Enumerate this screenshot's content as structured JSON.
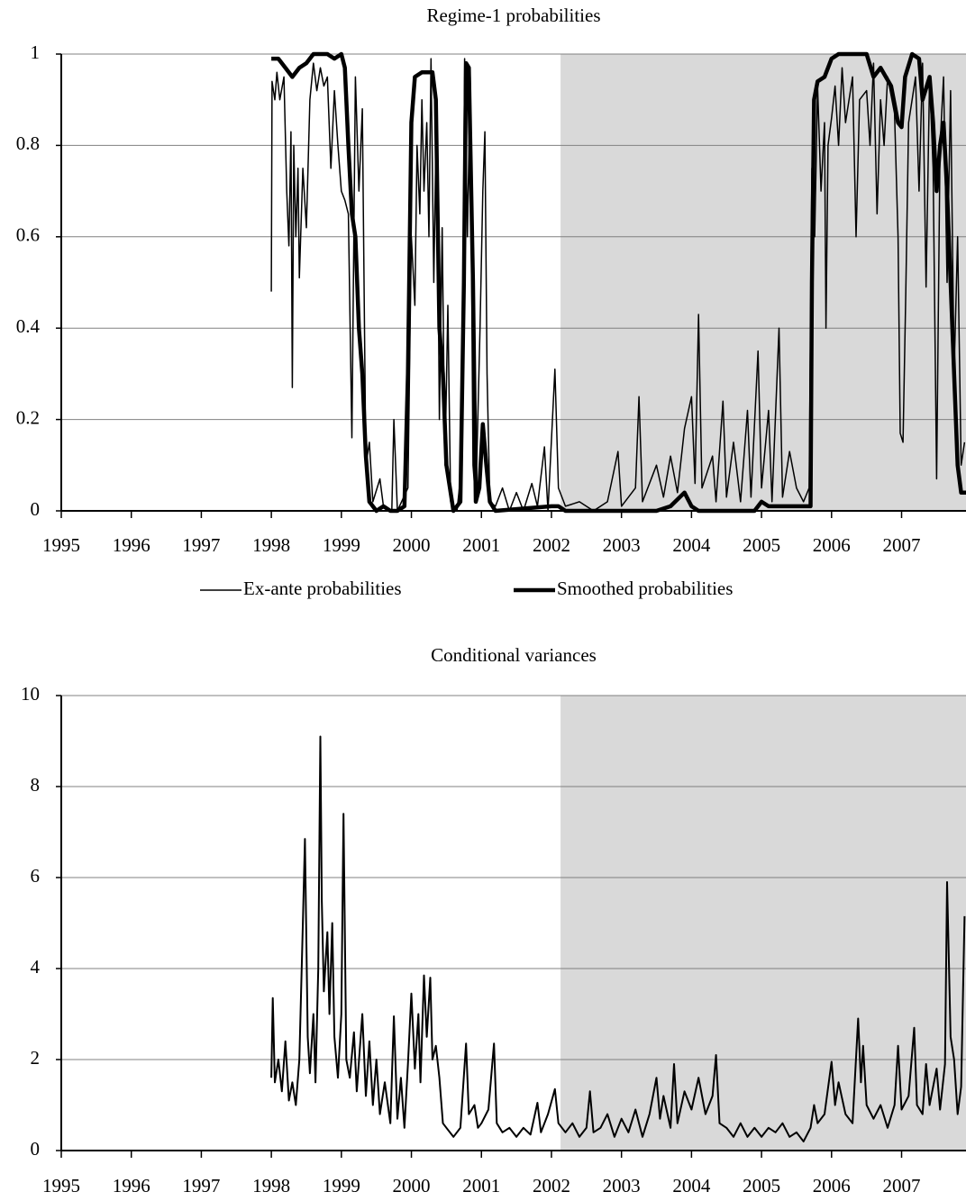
{
  "chart_data": [
    {
      "type": "line",
      "title": "Regime-1 probabilities",
      "xlim": [
        1995,
        2007.92
      ],
      "xticks": [
        1995,
        1996,
        1997,
        1998,
        1999,
        2000,
        2001,
        2002,
        2003,
        2004,
        2005,
        2006,
        2007
      ],
      "ylim": [
        0,
        1
      ],
      "yticks": [
        0,
        0.2,
        0.4,
        0.6,
        0.8,
        1
      ],
      "grid": true,
      "legend": "bottom",
      "shaded_region": [
        2002.13,
        2007.92
      ],
      "shade_color": "#d9d9d9",
      "series": [
        {
          "name": "Ex-ante probabilities",
          "color": "#000000",
          "width": 1.5,
          "x": [
            1998.0,
            1998.01,
            1998.05,
            1998.08,
            1998.12,
            1998.18,
            1998.22,
            1998.25,
            1998.28,
            1998.3,
            1998.32,
            1998.35,
            1998.38,
            1998.4,
            1998.45,
            1998.5,
            1998.55,
            1998.6,
            1998.65,
            1998.7,
            1998.75,
            1998.8,
            1998.85,
            1998.9,
            1998.95,
            1999.0,
            1999.05,
            1999.1,
            1999.15,
            1999.2,
            1999.25,
            1999.3,
            1999.35,
            1999.4,
            1999.45,
            1999.55,
            1999.6,
            1999.72,
            1999.75,
            1999.8,
            1999.95,
            2000.0,
            2000.05,
            2000.08,
            2000.12,
            2000.15,
            2000.18,
            2000.22,
            2000.25,
            2000.28,
            2000.32,
            2000.36,
            2000.4,
            2000.44,
            2000.48,
            2000.52,
            2000.56,
            2000.65,
            2000.72,
            2000.76,
            2000.8,
            2000.84,
            2000.88,
            2000.92,
            2000.98,
            2001.02,
            2001.05,
            2001.08,
            2001.12,
            2001.2,
            2001.3,
            2001.4,
            2001.5,
            2001.6,
            2001.72,
            2001.8,
            2001.9,
            2001.95,
            2002.05,
            2002.1,
            2002.2,
            2002.4,
            2002.6,
            2002.8,
            2002.95,
            2003.0,
            2003.2,
            2003.25,
            2003.3,
            2003.5,
            2003.6,
            2003.7,
            2003.8,
            2003.9,
            2004.0,
            2004.05,
            2004.1,
            2004.15,
            2004.3,
            2004.35,
            2004.45,
            2004.5,
            2004.6,
            2004.7,
            2004.8,
            2004.85,
            2004.95,
            2005.0,
            2005.1,
            2005.15,
            2005.25,
            2005.3,
            2005.4,
            2005.5,
            2005.6,
            2005.68,
            2005.72,
            2005.76,
            2005.8,
            2005.85,
            2005.9,
            2005.92,
            2005.95,
            2006.0,
            2006.05,
            2006.1,
            2006.15,
            2006.2,
            2006.3,
            2006.35,
            2006.4,
            2006.5,
            2006.55,
            2006.6,
            2006.65,
            2006.7,
            2006.75,
            2006.8,
            2006.9,
            2006.95,
            2006.98,
            2007.02,
            2007.06,
            2007.1,
            2007.15,
            2007.2,
            2007.25,
            2007.3,
            2007.35,
            2007.4,
            2007.45,
            2007.5,
            2007.55,
            2007.6,
            2007.65,
            2007.7,
            2007.75,
            2007.8,
            2007.85,
            2007.9
          ],
          "values": [
            0.48,
            0.94,
            0.9,
            0.96,
            0.9,
            0.95,
            0.7,
            0.58,
            0.83,
            0.27,
            0.8,
            0.6,
            0.75,
            0.51,
            0.75,
            0.62,
            0.9,
            0.98,
            0.92,
            0.97,
            0.93,
            0.95,
            0.75,
            0.92,
            0.8,
            0.7,
            0.68,
            0.65,
            0.16,
            0.95,
            0.7,
            0.88,
            0.1,
            0.15,
            0.02,
            0.07,
            0.01,
            0.0,
            0.2,
            0.0,
            0.05,
            0.6,
            0.45,
            0.8,
            0.65,
            0.9,
            0.7,
            0.85,
            0.6,
            0.99,
            0.5,
            0.9,
            0.2,
            0.62,
            0.1,
            0.45,
            0.02,
            0.0,
            0.1,
            0.99,
            0.6,
            0.95,
            0.1,
            0.02,
            0.4,
            0.7,
            0.83,
            0.3,
            0.02,
            0.01,
            0.05,
            0.0,
            0.04,
            0.0,
            0.06,
            0.01,
            0.14,
            0.0,
            0.31,
            0.05,
            0.01,
            0.02,
            0.0,
            0.02,
            0.13,
            0.01,
            0.05,
            0.25,
            0.02,
            0.1,
            0.03,
            0.12,
            0.04,
            0.18,
            0.25,
            0.06,
            0.43,
            0.05,
            0.12,
            0.02,
            0.24,
            0.03,
            0.15,
            0.02,
            0.22,
            0.03,
            0.35,
            0.05,
            0.22,
            0.02,
            0.4,
            0.03,
            0.13,
            0.05,
            0.02,
            0.05,
            0.75,
            0.6,
            0.93,
            0.7,
            0.85,
            0.4,
            0.8,
            0.86,
            0.93,
            0.8,
            0.97,
            0.85,
            0.95,
            0.6,
            0.9,
            0.92,
            0.8,
            0.98,
            0.65,
            0.9,
            0.8,
            0.95,
            0.87,
            0.6,
            0.17,
            0.15,
            0.48,
            0.85,
            0.9,
            0.95,
            0.7,
            0.98,
            0.49,
            0.95,
            0.75,
            0.07,
            0.8,
            0.95,
            0.5,
            0.92,
            0.3,
            0.6,
            0.1,
            0.15
          ]
        },
        {
          "name": "Smoothed probabilities",
          "color": "#000000",
          "width": 4.5,
          "x": [
            1998.0,
            1998.1,
            1998.2,
            1998.3,
            1998.4,
            1998.5,
            1998.6,
            1998.8,
            1998.9,
            1999.0,
            1999.05,
            1999.1,
            1999.15,
            1999.2,
            1999.25,
            1999.3,
            1999.35,
            1999.4,
            1999.5,
            1999.6,
            1999.7,
            1999.8,
            1999.9,
            1999.95,
            2000.0,
            2000.05,
            2000.15,
            2000.3,
            2000.35,
            2000.4,
            2000.45,
            2000.5,
            2000.55,
            2000.6,
            2000.7,
            2000.75,
            2000.78,
            2000.82,
            2000.88,
            2000.92,
            2000.97,
            2001.02,
            2001.07,
            2001.12,
            2001.2,
            2002.0,
            2002.1,
            2002.2,
            2003.5,
            2003.7,
            2003.9,
            2004.0,
            2004.1,
            2004.9,
            2005.0,
            2005.1,
            2005.7,
            2005.72,
            2005.75,
            2005.8,
            2005.9,
            2006.0,
            2006.1,
            2006.5,
            2006.6,
            2006.7,
            2006.85,
            2006.95,
            2007.0,
            2007.05,
            2007.15,
            2007.25,
            2007.3,
            2007.4,
            2007.45,
            2007.5,
            2007.55,
            2007.6,
            2007.65,
            2007.7,
            2007.75,
            2007.8,
            2007.85,
            2007.92
          ],
          "values": [
            0.99,
            0.99,
            0.97,
            0.95,
            0.97,
            0.98,
            1.0,
            1.0,
            0.99,
            1.0,
            0.97,
            0.8,
            0.65,
            0.6,
            0.4,
            0.3,
            0.12,
            0.02,
            0.0,
            0.01,
            0.0,
            0.0,
            0.01,
            0.3,
            0.85,
            0.95,
            0.96,
            0.96,
            0.9,
            0.4,
            0.3,
            0.1,
            0.05,
            0.0,
            0.02,
            0.5,
            0.98,
            0.97,
            0.5,
            0.02,
            0.05,
            0.19,
            0.1,
            0.02,
            0.0,
            0.01,
            0.01,
            0.0,
            0.0,
            0.01,
            0.04,
            0.01,
            0.0,
            0.0,
            0.02,
            0.01,
            0.01,
            0.5,
            0.9,
            0.94,
            0.95,
            0.99,
            1.0,
            1.0,
            0.95,
            0.97,
            0.93,
            0.85,
            0.84,
            0.95,
            1.0,
            0.99,
            0.9,
            0.95,
            0.85,
            0.7,
            0.8,
            0.85,
            0.7,
            0.5,
            0.3,
            0.1,
            0.04,
            0.04
          ]
        }
      ]
    },
    {
      "type": "line",
      "title": "Conditional variances",
      "xlim": [
        1995,
        2007.92
      ],
      "xticks": [
        1995,
        1996,
        1997,
        1998,
        1999,
        2000,
        2001,
        2002,
        2003,
        2004,
        2005,
        2006,
        2007
      ],
      "ylim": [
        0,
        10
      ],
      "yticks": [
        0,
        2,
        4,
        6,
        8,
        10
      ],
      "grid": true,
      "shaded_region": [
        2002.13,
        2007.92
      ],
      "shade_color": "#d9d9d9",
      "series": [
        {
          "color": "#000000",
          "width": 2,
          "x": [
            1998.0,
            1998.02,
            1998.05,
            1998.1,
            1998.15,
            1998.2,
            1998.25,
            1998.3,
            1998.35,
            1998.4,
            1998.45,
            1998.48,
            1998.52,
            1998.55,
            1998.6,
            1998.63,
            1998.67,
            1998.7,
            1998.72,
            1998.75,
            1998.8,
            1998.83,
            1998.87,
            1998.9,
            1998.95,
            1999.0,
            1999.03,
            1999.07,
            1999.12,
            1999.18,
            1999.22,
            1999.3,
            1999.35,
            1999.4,
            1999.45,
            1999.5,
            1999.55,
            1999.62,
            1999.7,
            1999.75,
            1999.8,
            1999.85,
            1999.9,
            1999.95,
            2000.0,
            2000.05,
            2000.1,
            2000.13,
            2000.18,
            2000.22,
            2000.27,
            2000.3,
            2000.35,
            2000.4,
            2000.45,
            2000.5,
            2000.6,
            2000.7,
            2000.78,
            2000.82,
            2000.9,
            2000.95,
            2001.0,
            2001.1,
            2001.18,
            2001.22,
            2001.3,
            2001.4,
            2001.5,
            2001.6,
            2001.7,
            2001.8,
            2001.85,
            2001.95,
            2002.05,
            2002.1,
            2002.2,
            2002.3,
            2002.4,
            2002.5,
            2002.55,
            2002.6,
            2002.7,
            2002.8,
            2002.9,
            2003.0,
            2003.1,
            2003.2,
            2003.3,
            2003.4,
            2003.5,
            2003.55,
            2003.6,
            2003.7,
            2003.75,
            2003.8,
            2003.9,
            2004.0,
            2004.1,
            2004.2,
            2004.3,
            2004.35,
            2004.4,
            2004.5,
            2004.6,
            2004.7,
            2004.8,
            2004.9,
            2005.0,
            2005.1,
            2005.2,
            2005.3,
            2005.4,
            2005.5,
            2005.6,
            2005.7,
            2005.75,
            2005.8,
            2005.9,
            2006.0,
            2006.05,
            2006.1,
            2006.2,
            2006.3,
            2006.38,
            2006.42,
            2006.45,
            2006.5,
            2006.6,
            2006.7,
            2006.8,
            2006.9,
            2006.95,
            2007.0,
            2007.1,
            2007.18,
            2007.22,
            2007.3,
            2007.35,
            2007.4,
            2007.5,
            2007.55,
            2007.62,
            2007.65,
            2007.7,
            2007.75,
            2007.8,
            2007.85,
            2007.9
          ],
          "values": [
            1.6,
            3.35,
            1.5,
            2.0,
            1.3,
            2.4,
            1.1,
            1.5,
            1.0,
            2.0,
            5.0,
            6.85,
            2.5,
            1.7,
            3.0,
            1.5,
            4.0,
            9.1,
            5.5,
            3.5,
            4.8,
            3.0,
            5.0,
            2.5,
            1.6,
            3.0,
            7.4,
            2.0,
            1.6,
            2.6,
            1.3,
            3.0,
            1.2,
            2.4,
            1.0,
            2.0,
            0.8,
            1.5,
            0.6,
            2.95,
            0.7,
            1.6,
            0.5,
            1.9,
            3.45,
            1.8,
            3.0,
            1.5,
            3.85,
            2.5,
            3.8,
            2.0,
            2.3,
            1.6,
            0.6,
            0.5,
            0.3,
            0.5,
            2.35,
            0.8,
            1.0,
            0.5,
            0.6,
            0.9,
            2.35,
            0.6,
            0.4,
            0.5,
            0.3,
            0.5,
            0.35,
            1.05,
            0.4,
            0.8,
            1.35,
            0.6,
            0.4,
            0.6,
            0.3,
            0.5,
            1.3,
            0.4,
            0.5,
            0.8,
            0.3,
            0.7,
            0.4,
            0.9,
            0.3,
            0.8,
            1.6,
            0.7,
            1.2,
            0.5,
            1.9,
            0.6,
            1.3,
            0.9,
            1.6,
            0.8,
            1.2,
            2.1,
            0.6,
            0.5,
            0.3,
            0.6,
            0.3,
            0.5,
            0.3,
            0.5,
            0.4,
            0.6,
            0.3,
            0.4,
            0.2,
            0.5,
            1.0,
            0.6,
            0.8,
            1.95,
            1.0,
            1.5,
            0.8,
            0.6,
            2.9,
            1.5,
            2.3,
            1.0,
            0.7,
            1.0,
            0.5,
            1.0,
            2.3,
            0.9,
            1.2,
            2.7,
            1.0,
            0.8,
            1.9,
            1.0,
            1.8,
            0.9,
            1.9,
            5.9,
            2.5,
            2.0,
            0.8,
            1.4,
            5.15
          ]
        }
      ]
    }
  ]
}
